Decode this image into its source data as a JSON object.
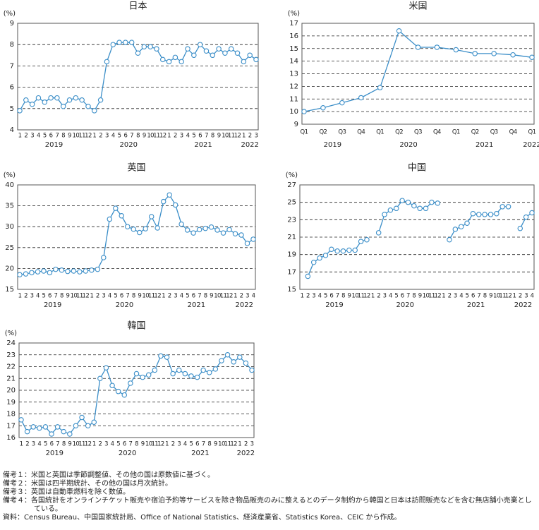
{
  "chart_data": [
    {
      "type": "line",
      "title": "日本",
      "y_label": "(%)",
      "color": "#3b8ec8",
      "grid": true,
      "categories": [
        "1",
        "2",
        "3",
        "4",
        "5",
        "6",
        "7",
        "8",
        "9",
        "10",
        "11",
        "12",
        "1",
        "2",
        "3",
        "4",
        "5",
        "6",
        "7",
        "8",
        "9",
        "10",
        "11",
        "12",
        "1",
        "2",
        "3",
        "4",
        "5",
        "6",
        "7",
        "8",
        "9",
        "10",
        "11",
        "12",
        "1",
        "2",
        "3"
      ],
      "years": [
        "2019",
        "2020",
        "2021",
        "2022"
      ],
      "values": [
        4.9,
        5.4,
        5.2,
        5.5,
        5.3,
        5.5,
        5.5,
        5.1,
        5.4,
        5.5,
        5.4,
        5.1,
        4.9,
        5.4,
        7.2,
        8.0,
        8.1,
        8.1,
        8.1,
        7.6,
        7.9,
        7.9,
        7.8,
        7.3,
        7.2,
        7.4,
        7.2,
        7.8,
        7.5,
        8.0,
        7.7,
        7.5,
        7.8,
        7.6,
        7.8,
        7.6,
        7.2,
        7.5,
        7.3
      ],
      "ylim": [
        4,
        9
      ],
      "yticks": [
        4,
        5,
        6,
        7,
        8,
        9
      ]
    },
    {
      "type": "line",
      "title": "米国",
      "y_label": "(%)",
      "color": "#3b8ec8",
      "grid": true,
      "categories": [
        "Q1",
        "Q2",
        "Q3",
        "Q4",
        "Q1",
        "Q2",
        "Q3",
        "Q4",
        "Q1",
        "Q2",
        "Q3",
        "Q4",
        "Q1"
      ],
      "years": [
        "2019",
        "2020",
        "2021",
        "2022"
      ],
      "values": [
        10.0,
        10.3,
        10.7,
        11.1,
        11.9,
        16.4,
        15.1,
        15.1,
        14.9,
        14.6,
        14.6,
        14.5,
        14.3
      ],
      "ylim": [
        9,
        17
      ],
      "yticks": [
        9,
        10,
        11,
        12,
        13,
        14,
        15,
        16,
        17
      ]
    },
    {
      "type": "line",
      "title": "英国",
      "y_label": "(%)",
      "color": "#3b8ec8",
      "grid": true,
      "categories": [
        "1",
        "2",
        "3",
        "4",
        "5",
        "6",
        "7",
        "8",
        "9",
        "10",
        "11",
        "12",
        "1",
        "2",
        "3",
        "4",
        "5",
        "6",
        "7",
        "8",
        "9",
        "10",
        "11",
        "12",
        "1",
        "2",
        "3",
        "4",
        "5",
        "6",
        "7",
        "8",
        "9",
        "10",
        "11",
        "12",
        "1",
        "2",
        "3",
        "4"
      ],
      "years": [
        "2019",
        "2020",
        "2021",
        "2022"
      ],
      "values": [
        18.5,
        18.7,
        19.0,
        19.2,
        19.4,
        19.0,
        19.8,
        19.6,
        19.3,
        19.4,
        19.2,
        19.4,
        19.6,
        19.8,
        22.6,
        31.8,
        34.4,
        32.6,
        30.0,
        29.4,
        28.6,
        29.5,
        32.4,
        29.7,
        36.0,
        37.6,
        35.2,
        30.6,
        29.2,
        28.5,
        29.3,
        29.6,
        29.9,
        29.2,
        28.5,
        29.3,
        28.3,
        28.0,
        26.0,
        27.0
      ],
      "ylim": [
        15,
        40
      ],
      "yticks": [
        15,
        20,
        25,
        30,
        35,
        40
      ]
    },
    {
      "type": "line",
      "title": "中国",
      "y_label": "(%)",
      "color": "#3b8ec8",
      "grid": true,
      "categories": [
        "1",
        "2",
        "3",
        "4",
        "5",
        "6",
        "7",
        "8",
        "9",
        "10",
        "11",
        "12",
        "1",
        "2",
        "3",
        "4",
        "5",
        "6",
        "7",
        "8",
        "9",
        "10",
        "11",
        "12",
        "1",
        "2",
        "3",
        "4",
        "5",
        "6",
        "7",
        "8",
        "9",
        "10",
        "11",
        "12",
        "1",
        "2",
        "3",
        "4"
      ],
      "years": [
        "2019",
        "2020",
        "2021",
        "2022"
      ],
      "values": [
        null,
        16.5,
        18.1,
        18.6,
        18.9,
        19.6,
        19.4,
        19.4,
        19.5,
        19.5,
        20.5,
        20.7,
        null,
        21.5,
        23.6,
        24.1,
        24.3,
        25.2,
        25.0,
        24.6,
        24.3,
        24.3,
        25.0,
        24.9,
        null,
        20.7,
        21.9,
        22.2,
        22.6,
        23.7,
        23.6,
        23.6,
        23.6,
        23.7,
        24.5,
        24.5,
        null,
        22.0,
        23.3,
        23.8
      ],
      "ylim": [
        15,
        27
      ],
      "yticks": [
        15,
        17,
        19,
        21,
        23,
        25,
        27
      ]
    },
    {
      "type": "line",
      "title": "韓国",
      "y_label": "(%)",
      "color": "#3b8ec8",
      "grid": true,
      "categories": [
        "1",
        "2",
        "3",
        "4",
        "5",
        "6",
        "7",
        "8",
        "9",
        "10",
        "11",
        "12",
        "1",
        "2",
        "3",
        "4",
        "5",
        "6",
        "7",
        "8",
        "9",
        "10",
        "11",
        "12",
        "1",
        "2",
        "3",
        "4",
        "5",
        "6",
        "7",
        "8",
        "9",
        "10",
        "11",
        "12",
        "1",
        "2",
        "3"
      ],
      "years": [
        "2019",
        "2020",
        "2021",
        "2022"
      ],
      "values": [
        17.5,
        16.5,
        16.9,
        16.8,
        16.9,
        16.3,
        16.9,
        16.5,
        16.3,
        17.0,
        17.7,
        17.0,
        17.3,
        21.0,
        21.9,
        20.4,
        19.9,
        19.6,
        20.6,
        21.4,
        21.1,
        21.3,
        21.7,
        22.9,
        22.8,
        21.4,
        21.7,
        21.4,
        21.2,
        21.1,
        21.7,
        21.5,
        21.8,
        22.5,
        23.0,
        22.4,
        22.8,
        22.3,
        21.7
      ],
      "ylim": [
        16,
        24
      ],
      "yticks": [
        16,
        17,
        18,
        19,
        20,
        21,
        22,
        23,
        24
      ]
    }
  ],
  "notes": [
    "備考１：米国と英国は季節調整値、その他の国は原数値に基づく。",
    "備考２：米国は四半期統計、その他の国は月次統計。",
    "備考３：英国は自動車燃料を除く数値。",
    "備考４：各国統計をオンラインチケット販売や宿泊予約等サービスを除き物品販売のみに整えるとのデータ制約から韓国と日本は訪問販売などを含む無店舗小売業としている。"
  ],
  "source": "資料：Census Bureau、中国国家統計局、Office of National Statistics、経済産業省、Statistics Korea、CEIC から作成。"
}
